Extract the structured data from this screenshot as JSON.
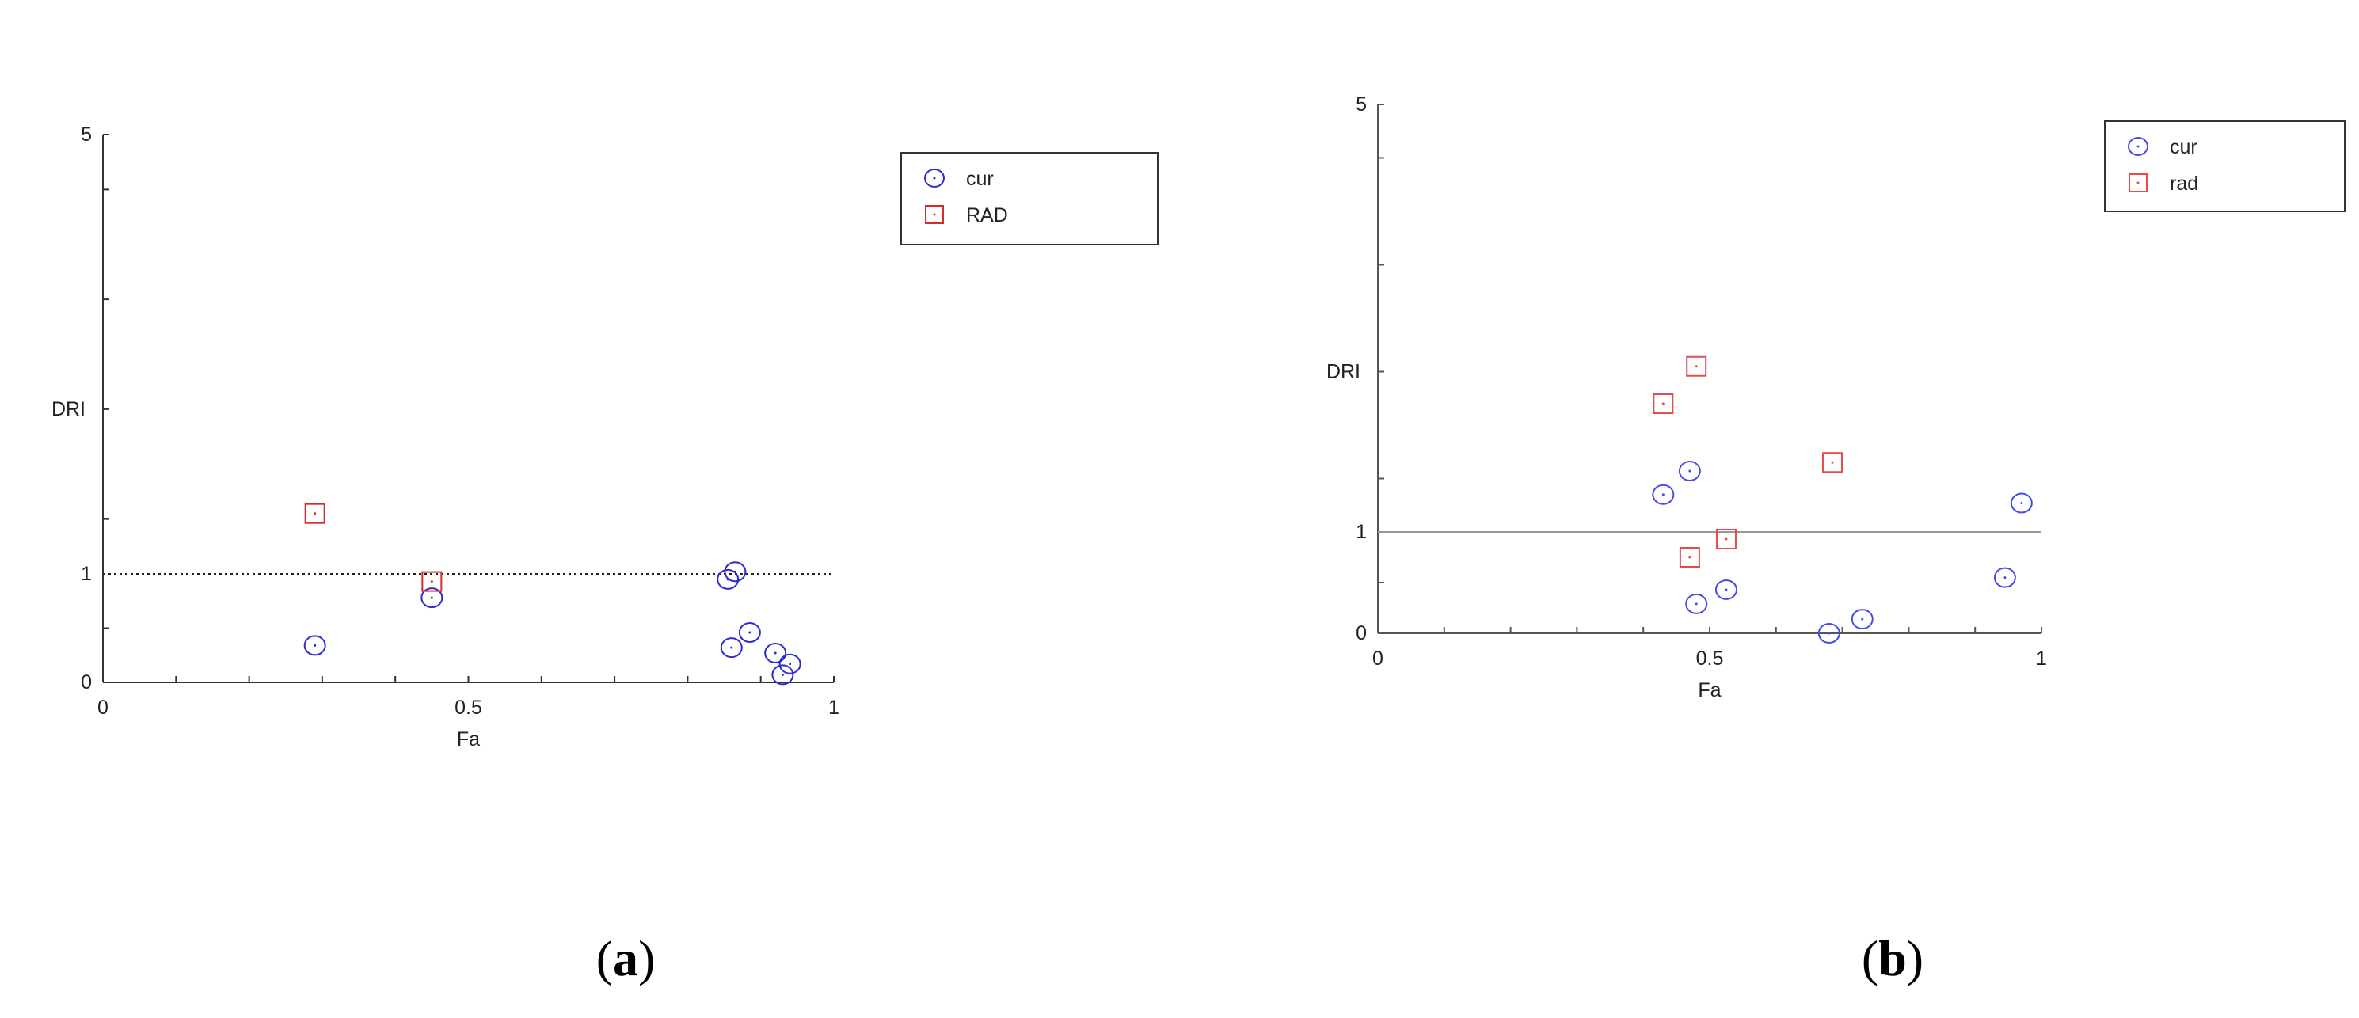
{
  "chart_data": [
    {
      "type": "scatter",
      "panel_label": "a",
      "xlabel": "Fa",
      "ylabel": "DRI",
      "xlim": [
        0,
        1
      ],
      "ylim": [
        0,
        5
      ],
      "xticks": [
        0,
        0.5,
        1
      ],
      "yticks": [
        0,
        1,
        5
      ],
      "reference_line": {
        "y": 1,
        "style": "dotted"
      },
      "legend_position": "top-right",
      "series": [
        {
          "name": "cur",
          "marker": "circle",
          "color": "#2b2bd4",
          "points": [
            [
              0.29,
              0.34
            ],
            [
              0.45,
              0.78
            ],
            [
              0.855,
              0.95
            ],
            [
              0.865,
              1.02
            ],
            [
              0.86,
              0.32
            ],
            [
              0.885,
              0.46
            ],
            [
              0.92,
              0.27
            ],
            [
              0.94,
              0.17
            ],
            [
              0.93,
              0.07
            ]
          ]
        },
        {
          "name": "RAD",
          "marker": "square",
          "color": "#d42b2b",
          "points": [
            [
              0.29,
              1.55
            ],
            [
              0.45,
              0.93
            ]
          ]
        }
      ]
    },
    {
      "type": "scatter",
      "panel_label": "b",
      "xlabel": "Fa",
      "ylabel": "DRI",
      "xlim": [
        0,
        1
      ],
      "ylim": [
        0,
        5
      ],
      "xticks": [
        0,
        0.5,
        1
      ],
      "yticks": [
        0,
        1,
        5
      ],
      "reference_line": {
        "y": 1,
        "style": "solid"
      },
      "legend_position": "top-right",
      "series": [
        {
          "name": "cur",
          "marker": "circle",
          "color": "#4a4ae6",
          "points": [
            [
              0.43,
              1.35
            ],
            [
              0.47,
              1.57
            ],
            [
              0.48,
              0.29
            ],
            [
              0.525,
              0.43
            ],
            [
              0.68,
              0.0
            ],
            [
              0.73,
              0.14
            ],
            [
              0.945,
              0.55
            ],
            [
              0.97,
              1.27
            ]
          ]
        },
        {
          "name": "rad",
          "marker": "square",
          "color": "#e64a4a",
          "points": [
            [
              0.43,
              2.2
            ],
            [
              0.48,
              2.55
            ],
            [
              0.685,
              1.65
            ],
            [
              0.47,
              0.75
            ],
            [
              0.525,
              0.93
            ]
          ]
        }
      ]
    }
  ],
  "captions": [
    "a",
    "b"
  ]
}
